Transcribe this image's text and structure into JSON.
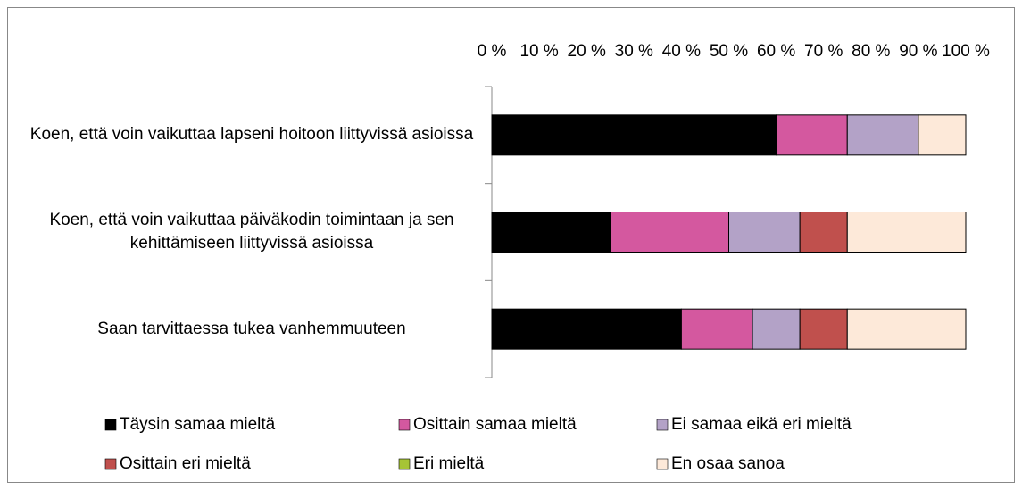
{
  "chart_data": {
    "type": "stacked_bar_horizontal",
    "categories": [
      "Koen, että voin vaikuttaa lapseni hoitoon liittyvissä asioissa",
      "Koen, että voin vaikuttaa päiväkodin toimintaan ja sen kehittämiseen liittyvissä asioissa",
      "Saan tarvittaessa tukea vanhemmuuteen"
    ],
    "series": [
      {
        "name": "Täysin samaa mieltä",
        "color": "#000000",
        "values": [
          60,
          25,
          40
        ]
      },
      {
        "name": "Osittain samaa mieltä",
        "color": "#d4589f",
        "values": [
          15,
          25,
          15
        ]
      },
      {
        "name": "Ei samaa eikä eri mieltä",
        "color": "#b3a2c7",
        "values": [
          15,
          15,
          10
        ]
      },
      {
        "name": "Osittain eri mieltä",
        "color": "#c0504d",
        "values": [
          0,
          10,
          10
        ]
      },
      {
        "name": "Eri mieltä",
        "color": "#a6c435",
        "values": [
          0,
          0,
          0
        ]
      },
      {
        "name": "En osaa sanoa",
        "color": "#fde9d9",
        "values": [
          10,
          25,
          25
        ]
      }
    ],
    "xlim": [
      0,
      100
    ],
    "xticks": [
      {
        "value": 0,
        "label": "0 %"
      },
      {
        "value": 10,
        "label": "10 %"
      },
      {
        "value": 20,
        "label": "20 %"
      },
      {
        "value": 30,
        "label": "30 %"
      },
      {
        "value": 40,
        "label": "40 %"
      },
      {
        "value": 50,
        "label": "50 %"
      },
      {
        "value": 60,
        "label": "60 %"
      },
      {
        "value": 70,
        "label": "70 %"
      },
      {
        "value": 80,
        "label": "80 %"
      },
      {
        "value": 90,
        "label": "90 %"
      },
      {
        "value": 100,
        "label": "100 %"
      }
    ],
    "legend": "bottom"
  }
}
